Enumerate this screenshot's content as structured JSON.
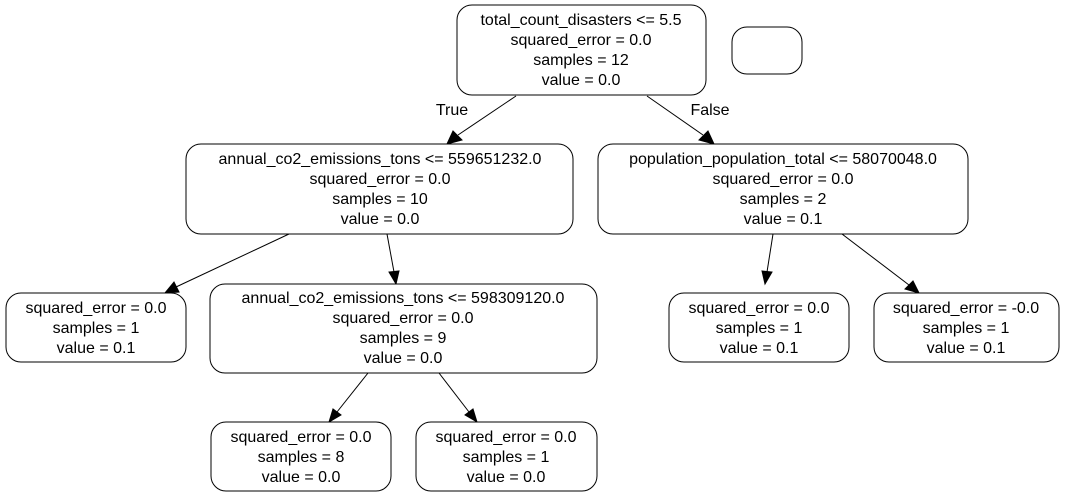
{
  "tree": {
    "edge_labels": {
      "true_label": "True",
      "false_label": "False"
    },
    "nodes": {
      "root": [
        "total_count_disasters <= 5.5",
        "squared_error = 0.0",
        "samples = 12",
        "value = 0.0"
      ],
      "n1": [
        "annual_co2_emissions_tons <= 559651232.0",
        "squared_error = 0.0",
        "samples = 10",
        "value = 0.0"
      ],
      "n2": [
        "population_population_total <= 58070048.0",
        "squared_error = 0.0",
        "samples = 2",
        "value = 0.1"
      ],
      "n3": [
        "squared_error = 0.0",
        "samples = 1",
        "value = 0.1"
      ],
      "n4": [
        "annual_co2_emissions_tons <= 598309120.0",
        "squared_error = 0.0",
        "samples = 9",
        "value = 0.0"
      ],
      "n5": [
        "squared_error = 0.0",
        "samples = 8",
        "value = 0.0"
      ],
      "n6": [
        "squared_error = 0.0",
        "samples = 1",
        "value = 0.0"
      ],
      "n7": [
        "squared_error = 0.0",
        "samples = 1",
        "value = 0.1"
      ],
      "n8": [
        "squared_error = -0.0",
        "samples = 1",
        "value = 0.1"
      ]
    }
  }
}
